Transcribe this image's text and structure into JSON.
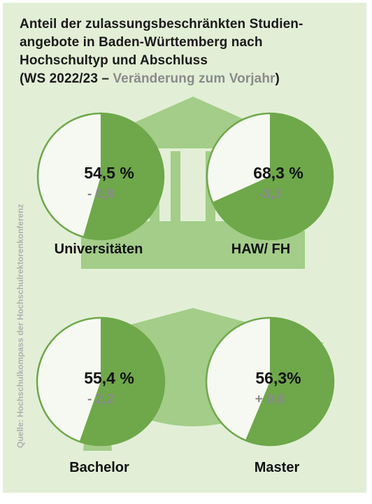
{
  "header": {
    "title_line1": "Anteil der zulassungsbeschränkten Studien-",
    "title_line2": "angebote in Baden-Württemberg nach",
    "title_line3": "Hochschultyp und Abschluss",
    "subtitle_open": "(WS 2022/23 – ",
    "subtitle_gray": "Veränderung zum Vorjahr",
    "subtitle_close": ")"
  },
  "source": "Quelle: Hochschulkompass der Hochschulrektorenkonferenz",
  "colors": {
    "background": "#e2efd6",
    "slice": "#6ea84a",
    "remainder": "#f6f9f2",
    "ring": "#6ea84a",
    "icon": "#a3cd88",
    "value_text": "#111111",
    "change_text": "#8a8a8a"
  },
  "icons": [
    "university-building-icon",
    "graduation-cap-icon"
  ],
  "chart_data": [
    {
      "type": "pie",
      "category": "Universitäten",
      "value": 54.5,
      "value_label": "54,5 %",
      "change": -0.8,
      "change_label": "- 0,8"
    },
    {
      "type": "pie",
      "category": "HAW/ FH",
      "value": 68.3,
      "value_label": "68,3 %",
      "change": -3.3,
      "change_label": "-3,3"
    },
    {
      "type": "pie",
      "category": "Bachelor",
      "value": 55.4,
      "value_label": "55,4 %",
      "change": -2.2,
      "change_label": "- 2,2"
    },
    {
      "type": "pie",
      "category": "Master",
      "value": 56.3,
      "value_label": "56,3%",
      "change": 0.6,
      "change_label": "+ 0,6"
    }
  ]
}
